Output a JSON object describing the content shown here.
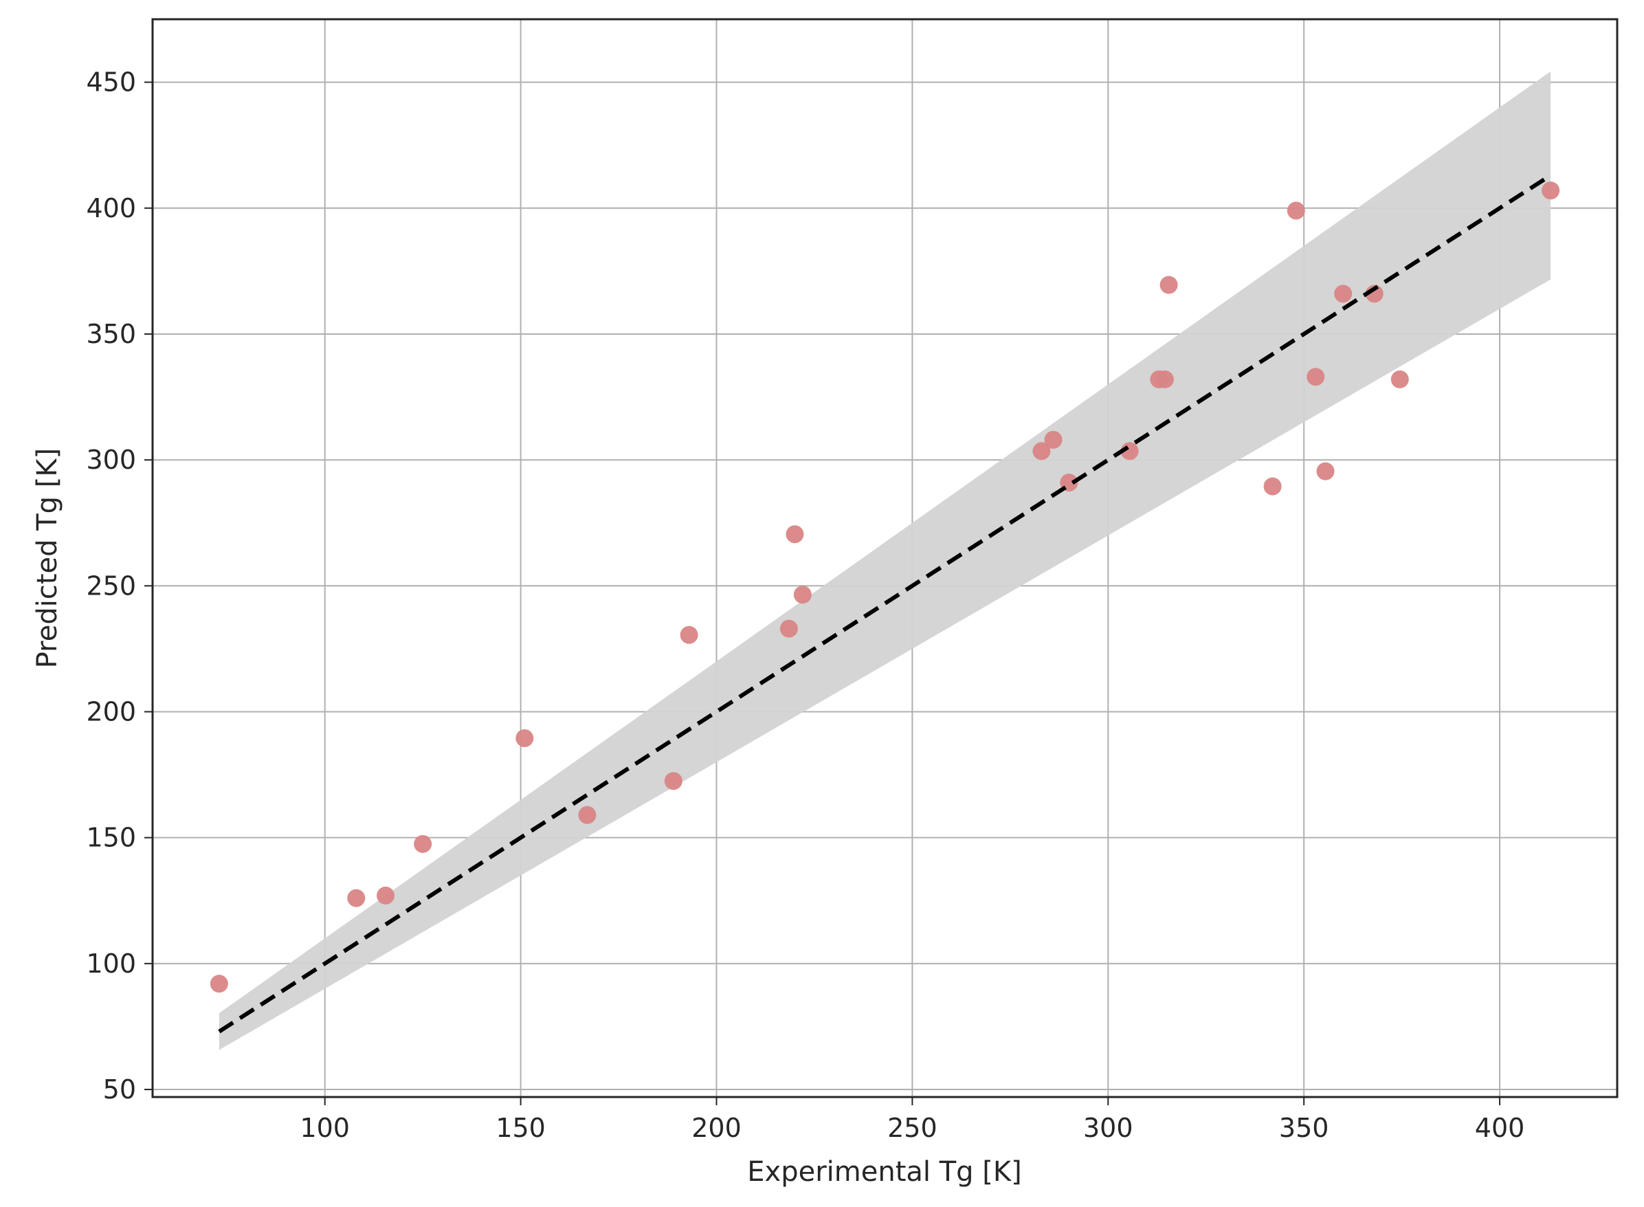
{
  "chart_data": {
    "type": "scatter",
    "title": "",
    "xlabel": "Experimental Tg [K]",
    "ylabel": "Predicted Tg [K]",
    "xlim": [
      56,
      430
    ],
    "ylim": [
      47,
      475
    ],
    "xticks": [
      100,
      150,
      200,
      250,
      300,
      350,
      400
    ],
    "yticks": [
      50,
      100,
      150,
      200,
      250,
      300,
      350,
      400,
      450
    ],
    "grid": true,
    "legend": "none",
    "series": [
      {
        "type": "scatter",
        "color": "#d98585",
        "x": [
          73,
          108,
          115.5,
          125,
          151,
          167,
          189,
          193,
          218.5,
          220,
          222,
          283,
          286,
          290,
          305.5,
          313,
          314.5,
          315.5,
          342,
          348,
          353,
          355.5,
          360,
          368,
          374.5,
          413
        ],
        "y": [
          92,
          126,
          127,
          147.5,
          189.5,
          159,
          172.5,
          230.5,
          233,
          270.5,
          246.5,
          303.5,
          308,
          291,
          303.5,
          332,
          332,
          369.5,
          289.5,
          399,
          333,
          295.5,
          366,
          366,
          332,
          407
        ]
      },
      {
        "type": "line",
        "style": "dashed",
        "color": "#000000",
        "x": [
          73,
          413
        ],
        "y": [
          73,
          413
        ]
      },
      {
        "type": "band",
        "color": "#d3d3d3",
        "x": [
          73,
          413
        ],
        "lower": [
          65.7,
          371.7
        ],
        "upper": [
          80.3,
          454.3
        ]
      }
    ]
  }
}
